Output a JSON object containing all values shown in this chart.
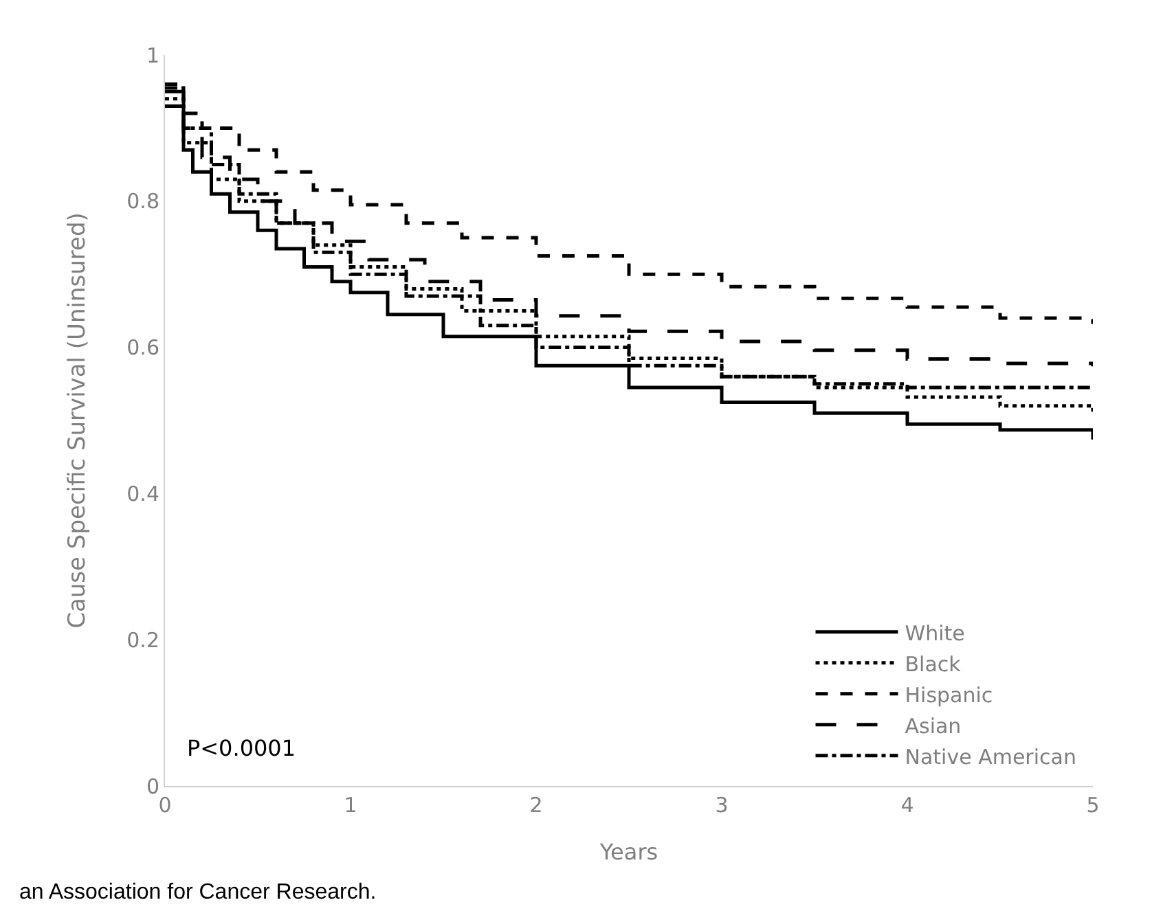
{
  "chart_data": {
    "type": "step",
    "xlabel": "Years",
    "ylabel": "Cause Specific Survival (Uninsured)",
    "xlim": [
      0,
      5
    ],
    "xticks": [
      0,
      1,
      2,
      3,
      4,
      5
    ],
    "ylim": [
      0,
      1
    ],
    "yticks": [
      0,
      0.2,
      0.4,
      0.6,
      0.8,
      1
    ],
    "legend": "bottom right",
    "marker": "none",
    "annotations": [
      "P<0.0001",
      "an Association for Cancer Research."
    ],
    "series": [
      {
        "name": "White",
        "color": "#000000",
        "line_style": "solid",
        "x": [
          0,
          0.1,
          0.15,
          0.25,
          0.35,
          0.5,
          0.6,
          0.75,
          0.9,
          1.0,
          1.2,
          1.5,
          2,
          2.5,
          3,
          3.5,
          4,
          4.5,
          5
        ],
        "values": [
          0.93,
          0.87,
          0.84,
          0.81,
          0.785,
          0.76,
          0.735,
          0.71,
          0.69,
          0.675,
          0.645,
          0.615,
          0.575,
          0.545,
          0.525,
          0.51,
          0.495,
          0.487,
          0.474
        ]
      },
      {
        "name": "Black",
        "color": "#000000",
        "line_style": "dotted",
        "x": [
          0,
          0.1,
          0.25,
          0.4,
          0.6,
          0.8,
          1,
          1.3,
          1.6,
          2,
          2.5,
          3,
          3.5,
          4,
          4.5,
          5
        ],
        "values": [
          0.94,
          0.88,
          0.83,
          0.8,
          0.77,
          0.74,
          0.71,
          0.68,
          0.65,
          0.615,
          0.585,
          0.56,
          0.545,
          0.532,
          0.52,
          0.512
        ]
      },
      {
        "name": "Hispanic",
        "color": "#000000",
        "line_style": "dashed",
        "x": [
          0,
          0.1,
          0.2,
          0.4,
          0.6,
          0.8,
          1,
          1.3,
          1.6,
          2,
          2.5,
          3,
          3.5,
          4,
          4.5,
          5
        ],
        "values": [
          0.96,
          0.92,
          0.9,
          0.87,
          0.84,
          0.815,
          0.795,
          0.77,
          0.75,
          0.725,
          0.7,
          0.683,
          0.667,
          0.655,
          0.64,
          0.632
        ]
      },
      {
        "name": "Asian",
        "color": "#000000",
        "line_style": "longdash",
        "x": [
          0,
          0.1,
          0.2,
          0.35,
          0.5,
          0.7,
          0.9,
          1.1,
          1.4,
          1.7,
          2,
          2.5,
          3,
          3.5,
          4,
          4.5,
          5
        ],
        "values": [
          0.95,
          0.9,
          0.86,
          0.83,
          0.8,
          0.77,
          0.745,
          0.72,
          0.69,
          0.665,
          0.643,
          0.622,
          0.608,
          0.596,
          0.584,
          0.578,
          0.574
        ]
      },
      {
        "name": "Native American",
        "color": "#000000",
        "line_style": "dashdot",
        "x": [
          0,
          0.1,
          0.25,
          0.4,
          0.6,
          0.8,
          1,
          1.3,
          1.7,
          2,
          2.5,
          3,
          3.5,
          4,
          5
        ],
        "values": [
          0.955,
          0.9,
          0.85,
          0.81,
          0.77,
          0.73,
          0.7,
          0.67,
          0.63,
          0.6,
          0.575,
          0.56,
          0.55,
          0.545,
          0.545
        ]
      }
    ]
  }
}
